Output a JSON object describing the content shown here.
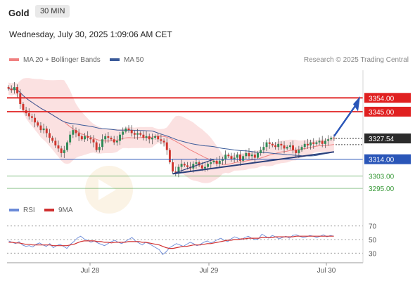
{
  "header": {
    "symbol": "Gold",
    "timeframe": "30 MIN",
    "datetime": "Wednesday, July 30, 2025 1:09:06 AM CET"
  },
  "legend": {
    "ma20_label": "MA 20 + Bollinger Bands",
    "ma50_label": "MA 50",
    "ma20_color": "#f08080",
    "ma50_color": "#3a5a99",
    "research": "Research © 2025 Trading Central"
  },
  "rsi_legend": {
    "rsi_label": "RSI",
    "ma9_label": "9MA",
    "rsi_color": "#6a8ad8",
    "ma9_color": "#d03030"
  },
  "chart_data": [
    {
      "type": "candlestick",
      "x_ticks": [
        "Jul 28",
        "Jul 29",
        "Jul 30"
      ],
      "ylim": [
        3285,
        3372
      ],
      "levels": [
        {
          "value": 3354.0,
          "label": "3354.00",
          "kind": "resistance",
          "color": "#e02020"
        },
        {
          "value": 3345.0,
          "label": "3345.00",
          "kind": "resistance",
          "color": "#e02020"
        },
        {
          "value": 3327.54,
          "label": "3327.54",
          "kind": "last",
          "color": "#222222"
        },
        {
          "value": 3314.0,
          "label": "3314.00",
          "kind": "pivot",
          "color": "#2a56b8"
        },
        {
          "value": 3303.0,
          "label": "3303.00",
          "kind": "support",
          "color": "#3a9a3a"
        },
        {
          "value": 3295.0,
          "label": "3295.00",
          "kind": "support",
          "color": "#3a9a3a"
        }
      ],
      "close": [
        3360,
        3359,
        3361,
        3357,
        3350,
        3346,
        3344,
        3342,
        3341,
        3338,
        3336,
        3333,
        3334,
        3331,
        3328,
        3326,
        3323,
        3321,
        3318,
        3320,
        3325,
        3330,
        3333,
        3331,
        3329,
        3327,
        3329,
        3328,
        3327,
        3325,
        3320,
        3322,
        3327,
        3329,
        3328,
        3327,
        3325,
        3326,
        3330,
        3332,
        3334,
        3333,
        3331,
        3330,
        3331,
        3330,
        3328,
        3329,
        3327,
        3328,
        3329,
        3327,
        3326,
        3325,
        3320,
        3312,
        3306,
        3305,
        3309,
        3311,
        3310,
        3309,
        3308,
        3311,
        3312,
        3310,
        3308,
        3309,
        3311,
        3312,
        3313,
        3311,
        3313,
        3314,
        3317,
        3316,
        3314,
        3315,
        3317,
        3313,
        3316,
        3318,
        3316,
        3317,
        3315,
        3318,
        3320,
        3322,
        3325,
        3324,
        3323,
        3322,
        3324,
        3323,
        3321,
        3322,
        3323,
        3320,
        3318,
        3320,
        3322,
        3324,
        3323,
        3325,
        3324,
        3325,
        3326,
        3324,
        3326,
        3327,
        3328,
        3327.54
      ],
      "ma20_bollinger": {
        "color": "#f08080"
      },
      "ma50": {
        "color": "#3a5a99"
      }
    },
    {
      "type": "line",
      "title": "RSI",
      "x_ticks": [
        "Jul 28",
        "Jul 29",
        "Jul 30"
      ],
      "ylim": [
        20,
        80
      ],
      "y_ticks": [
        70,
        50,
        30
      ],
      "series": [
        {
          "name": "RSI",
          "values": [
            48,
            46,
            44,
            47,
            42,
            40,
            41,
            39,
            43,
            45,
            42,
            40,
            44,
            38,
            41,
            43,
            40,
            37,
            43,
            47,
            52,
            55,
            51,
            49,
            46,
            48,
            45,
            43,
            41,
            44,
            47,
            49,
            46,
            44,
            47,
            50,
            53,
            48,
            45,
            42,
            46,
            44,
            41,
            38,
            35,
            28,
            32,
            38,
            41,
            44,
            42,
            40,
            43,
            46,
            44,
            41,
            43,
            46,
            48,
            45,
            47,
            50,
            52,
            49,
            47,
            51,
            54,
            52,
            50,
            53,
            55,
            52,
            50,
            51,
            58,
            55,
            52,
            56,
            54,
            51,
            53,
            55,
            52,
            56,
            57,
            55,
            53,
            54,
            56,
            55,
            53,
            55,
            57,
            54,
            56,
            55
          ]
        },
        {
          "name": "9MA",
          "values": [
            46,
            46,
            45,
            45,
            44,
            43,
            43,
            42,
            42,
            42,
            42,
            42,
            42,
            41,
            41,
            41,
            41,
            41,
            42,
            43,
            45,
            47,
            48,
            48,
            48,
            48,
            47,
            47,
            46,
            46,
            45,
            46,
            46,
            46,
            46,
            47,
            47,
            47,
            47,
            46,
            46,
            45,
            44,
            43,
            42,
            40,
            38,
            37,
            37,
            38,
            39,
            40,
            40,
            41,
            42,
            42,
            42,
            43,
            44,
            44,
            45,
            46,
            47,
            48,
            49,
            49,
            50,
            50,
            51,
            51,
            52,
            52,
            52,
            52,
            53,
            53,
            53,
            53,
            54,
            54,
            54,
            54,
            54,
            54,
            55,
            55,
            55,
            55,
            55,
            55,
            55,
            55,
            55,
            55,
            55,
            55
          ]
        }
      ]
    }
  ]
}
